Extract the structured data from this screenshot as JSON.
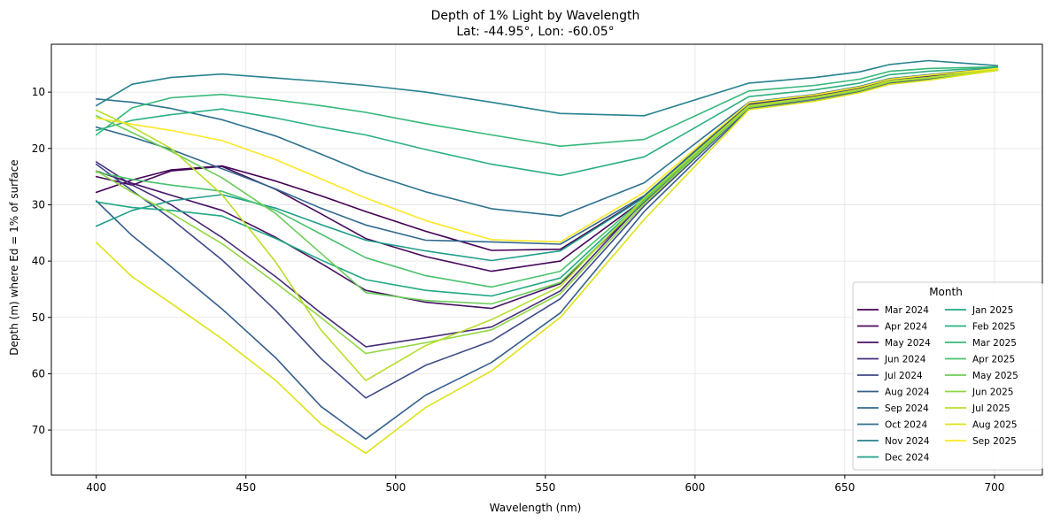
{
  "chart_data": {
    "type": "line",
    "title": "Depth of 1% Light by Wavelength",
    "subtitle": "Lat: -44.95°, Lon: -60.05°",
    "xlabel": "Wavelength (nm)",
    "ylabel": "Depth (m) where Ed = 1% of surface",
    "xlim": [
      385,
      716
    ],
    "ylim": [
      78,
      1.5
    ],
    "y_inverted": true,
    "grid": true,
    "xticks": [
      400,
      450,
      500,
      550,
      600,
      650,
      700
    ],
    "yticks": [
      10,
      20,
      30,
      40,
      50,
      60,
      70
    ],
    "legend_title": "Month",
    "legend_position": "lower-right",
    "x": [
      400,
      412,
      425,
      442,
      460,
      475,
      490,
      510,
      532,
      555,
      583,
      618,
      640,
      655,
      665,
      678,
      701
    ],
    "series": [
      {
        "name": "Mar 2024",
        "color": "#440154",
        "values": [
          27.8,
          25.6,
          23.8,
          23.1,
          25.8,
          28.4,
          31.2,
          34.7,
          38.1,
          37.9,
          28.6,
          12.1,
          10.7,
          9.3,
          7.8,
          7.2,
          5.9
        ]
      },
      {
        "name": "Apr 2024",
        "color": "#46085c",
        "values": [
          25.0,
          26.5,
          24.0,
          23.2,
          27.3,
          31.6,
          36.0,
          39.2,
          41.8,
          40.0,
          29.0,
          12.6,
          11.0,
          9.6,
          8.2,
          7.5,
          6.0
        ]
      },
      {
        "name": "May 2024",
        "color": "#471164",
        "values": [
          24.0,
          26.2,
          28.3,
          31.0,
          35.8,
          40.4,
          45.2,
          47.3,
          48.4,
          44.0,
          29.5,
          12.4,
          10.9,
          9.5,
          8.0,
          7.4,
          6.0
        ]
      },
      {
        "name": "Jun 2024",
        "color": "#472c7a",
        "values": [
          22.4,
          26.5,
          30.0,
          35.8,
          42.8,
          49.2,
          55.2,
          53.6,
          51.7,
          45.3,
          29.3,
          12.3,
          10.8,
          9.4,
          7.9,
          7.3,
          5.9
        ]
      },
      {
        "name": "Jul 2024",
        "color": "#3e4989",
        "values": [
          22.8,
          27.5,
          32.5,
          39.8,
          48.8,
          57.3,
          64.3,
          58.5,
          54.2,
          46.7,
          30.2,
          12.8,
          11.2,
          9.8,
          8.4,
          7.6,
          6.1
        ]
      },
      {
        "name": "Aug 2024",
        "color": "#355f8d",
        "values": [
          29.3,
          35.5,
          41.0,
          48.5,
          57.2,
          65.8,
          71.6,
          63.8,
          58.0,
          49.2,
          31.2,
          13.0,
          11.5,
          10.0,
          8.6,
          7.8,
          6.1
        ]
      },
      {
        "name": "Sep 2024",
        "color": "#31688e",
        "values": [
          16.2,
          18.0,
          20.2,
          23.6,
          27.2,
          30.6,
          33.6,
          36.3,
          36.6,
          37.0,
          28.4,
          12.0,
          10.5,
          9.1,
          7.7,
          7.0,
          5.8
        ]
      },
      {
        "name": "Oct 2024",
        "color": "#2c728e",
        "values": [
          11.2,
          11.8,
          12.9,
          14.9,
          17.8,
          21.0,
          24.3,
          27.7,
          30.7,
          32.0,
          26.1,
          11.8,
          10.4,
          9.0,
          7.6,
          6.9,
          5.7
        ]
      },
      {
        "name": "Nov 2024",
        "color": "#26828e",
        "values": [
          12.4,
          8.6,
          7.4,
          6.8,
          7.5,
          8.1,
          8.8,
          10.0,
          11.8,
          13.8,
          14.2,
          8.4,
          7.4,
          6.4,
          5.1,
          4.4,
          5.3
        ]
      },
      {
        "name": "Dec 2024",
        "color": "#1f9e89",
        "values": [
          33.8,
          31.0,
          29.3,
          28.2,
          30.6,
          33.5,
          36.3,
          38.2,
          39.9,
          38.2,
          28.7,
          12.4,
          10.9,
          9.5,
          8.0,
          7.4,
          5.9
        ]
      },
      {
        "name": "Jan 2025",
        "color": "#22a884",
        "values": [
          29.5,
          30.5,
          31.0,
          32.0,
          36.0,
          39.8,
          43.3,
          45.2,
          46.2,
          43.0,
          29.1,
          12.6,
          11.0,
          9.6,
          8.1,
          7.5,
          6.0
        ]
      },
      {
        "name": "Feb 2025",
        "color": "#2ab07f",
        "values": [
          16.8,
          15.0,
          14.0,
          13.0,
          14.6,
          16.2,
          17.6,
          20.2,
          22.8,
          24.8,
          21.5,
          10.8,
          9.6,
          8.4,
          6.9,
          6.3,
          5.6
        ]
      },
      {
        "name": "Mar 2025",
        "color": "#35b779",
        "values": [
          17.6,
          12.8,
          11.0,
          10.4,
          11.4,
          12.4,
          13.6,
          15.6,
          17.6,
          19.6,
          18.4,
          9.8,
          8.8,
          7.7,
          6.3,
          5.8,
          5.5
        ]
      },
      {
        "name": "Apr 2025",
        "color": "#4ac16d",
        "values": [
          24.2,
          25.5,
          26.5,
          27.6,
          31.0,
          35.2,
          39.4,
          42.6,
          44.6,
          41.8,
          28.9,
          12.5,
          11.0,
          9.6,
          8.1,
          7.4,
          6.0
        ]
      },
      {
        "name": "May 2025",
        "color": "#6ccd5a",
        "values": [
          14.2,
          17.2,
          20.5,
          25.2,
          31.6,
          38.6,
          45.6,
          47.0,
          47.6,
          43.8,
          29.3,
          12.6,
          11.0,
          9.6,
          8.1,
          7.5,
          6.0
        ]
      },
      {
        "name": "Jun 2025",
        "color": "#90d743",
        "values": [
          24.0,
          27.8,
          31.5,
          36.9,
          43.9,
          50.0,
          56.4,
          54.5,
          52.2,
          45.8,
          29.8,
          12.7,
          11.1,
          9.7,
          8.2,
          7.5,
          6.0
        ]
      },
      {
        "name": "Jul 2025",
        "color": "#b8de29",
        "values": [
          13.2,
          16.2,
          20.0,
          28.2,
          40.2,
          52.2,
          61.2,
          55.0,
          50.4,
          44.5,
          28.8,
          12.4,
          10.9,
          9.5,
          8.0,
          7.4,
          6.0
        ]
      },
      {
        "name": "Aug 2025",
        "color": "#dde318",
        "values": [
          36.7,
          42.8,
          47.5,
          53.8,
          61.2,
          68.9,
          74.1,
          66.0,
          59.5,
          50.0,
          32.6,
          13.1,
          11.6,
          10.1,
          8.6,
          7.9,
          6.1
        ]
      },
      {
        "name": "Sep 2025",
        "color": "#fde725",
        "values": [
          14.6,
          15.7,
          16.8,
          18.6,
          22.0,
          25.4,
          28.8,
          32.8,
          36.2,
          36.6,
          27.8,
          11.9,
          10.5,
          9.1,
          7.7,
          7.0,
          5.8
        ]
      }
    ]
  }
}
